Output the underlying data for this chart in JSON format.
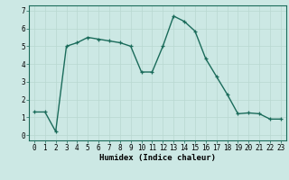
{
  "x": [
    0,
    1,
    2,
    3,
    4,
    5,
    6,
    7,
    8,
    9,
    10,
    11,
    12,
    13,
    14,
    15,
    16,
    17,
    18,
    19,
    20,
    21,
    22,
    23
  ],
  "y": [
    1.3,
    1.3,
    0.2,
    5.0,
    5.2,
    5.5,
    5.4,
    5.3,
    5.2,
    5.0,
    3.55,
    3.55,
    5.0,
    6.7,
    6.4,
    5.85,
    4.3,
    3.3,
    2.3,
    1.2,
    1.25,
    1.2,
    0.9,
    0.9
  ],
  "line_color": "#1a6b5a",
  "marker": "+",
  "marker_size": 3.5,
  "linewidth": 1.0,
  "xlabel": "Humidex (Indice chaleur)",
  "xlabel_fontsize": 6.5,
  "ylabel": "",
  "xlim": [
    -0.5,
    23.5
  ],
  "ylim": [
    -0.3,
    7.3
  ],
  "yticks": [
    0,
    1,
    2,
    3,
    4,
    5,
    6,
    7
  ],
  "xticks": [
    0,
    1,
    2,
    3,
    4,
    5,
    6,
    7,
    8,
    9,
    10,
    11,
    12,
    13,
    14,
    15,
    16,
    17,
    18,
    19,
    20,
    21,
    22,
    23
  ],
  "grid_color": "#b8d8d0",
  "grid_linewidth": 0.5,
  "bg_color": "#cce8e4",
  "tick_fontsize": 5.5,
  "spine_color": "#1a6b5a"
}
